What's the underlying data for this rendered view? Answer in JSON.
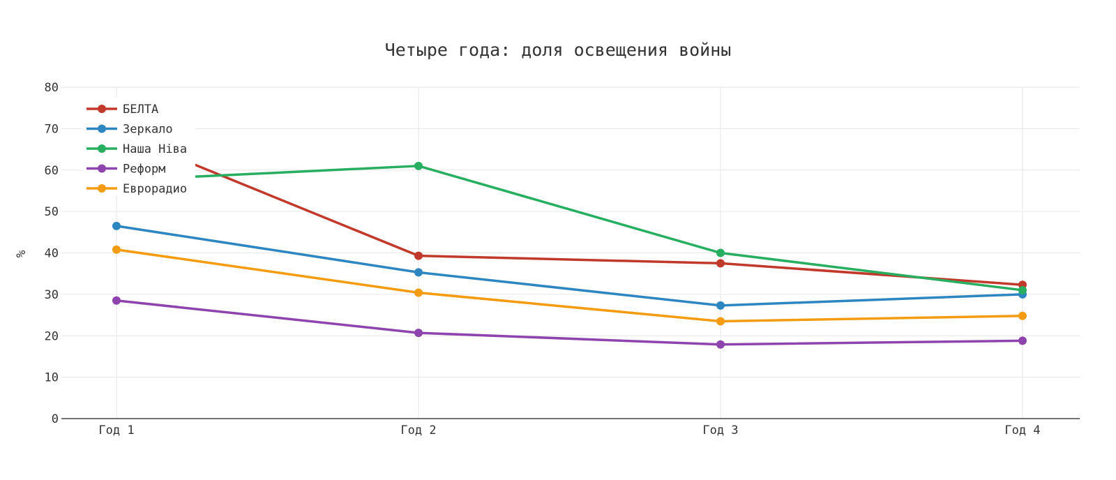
{
  "chart_data": {
    "type": "line",
    "title": "Четыре года: доля освещения войны",
    "xlabel": "",
    "ylabel": "%",
    "categories": [
      "Год 1",
      "Год 2",
      "Год 3",
      "Год 4"
    ],
    "ylim": [
      0,
      80
    ],
    "yticks": [
      0,
      10,
      20,
      30,
      40,
      50,
      60,
      70,
      80
    ],
    "grid": true,
    "legend_position": "top-left",
    "series": [
      {
        "name": "БЕЛТА",
        "color": "#c0392b",
        "values": [
          69,
          39.3,
          37.5,
          32.3
        ]
      },
      {
        "name": "Зеркало",
        "color": "#2e86c1",
        "values": [
          46.5,
          35.3,
          27.3,
          30
        ]
      },
      {
        "name": "Наша Ніва",
        "color": "#27ae60",
        "values": [
          57.5,
          61,
          40,
          31
        ]
      },
      {
        "name": "Реформ",
        "color": "#8e44ad",
        "values": [
          28.5,
          20.7,
          17.9,
          18.8
        ]
      },
      {
        "name": "Еврорадио",
        "color": "#f39c12",
        "values": [
          40.8,
          30.4,
          23.5,
          24.8
        ]
      }
    ]
  }
}
